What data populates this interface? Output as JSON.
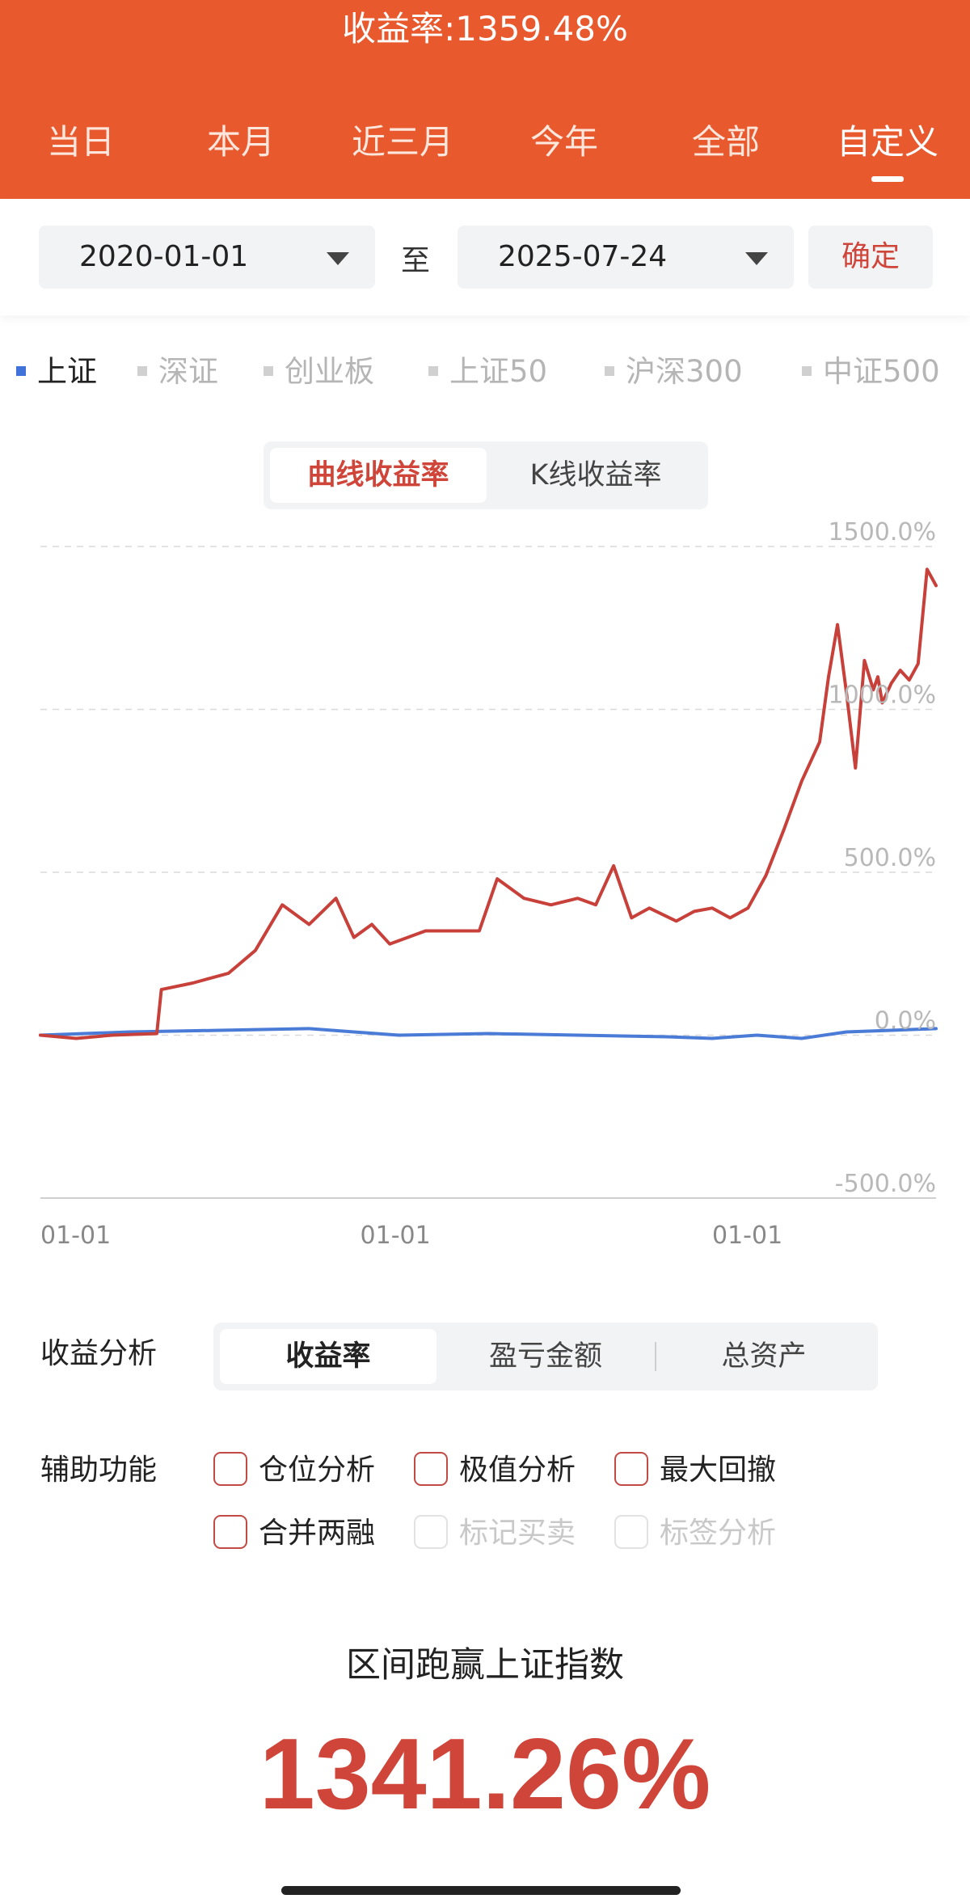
{
  "header": {
    "title": "收益率:1359.48%",
    "tabs": [
      {
        "label": "当日",
        "active": false
      },
      {
        "label": "本月",
        "active": false
      },
      {
        "label": "近三月",
        "active": false
      },
      {
        "label": "今年",
        "active": false
      },
      {
        "label": "全部",
        "active": false
      },
      {
        "label": "自定义",
        "active": true
      }
    ],
    "color": "#E8592E"
  },
  "date_range": {
    "start": "2020-01-01",
    "separator": "至",
    "end": "2025-07-24",
    "confirm_label": "确定"
  },
  "indices": [
    {
      "label": "上证",
      "active": true
    },
    {
      "label": "深证",
      "active": false
    },
    {
      "label": "创业板",
      "active": false
    },
    {
      "label": "上证50",
      "active": false
    },
    {
      "label": "沪深300",
      "active": false
    },
    {
      "label": "中证500",
      "active": false
    }
  ],
  "chart_modes": {
    "selected": "曲线收益率",
    "other": "K线收益率"
  },
  "chart_data": {
    "type": "line",
    "title": "",
    "xlabel": "",
    "ylabel": "",
    "ylim": [
      -500,
      1500
    ],
    "y_ticks": [
      "1500.0%",
      "1000.0%",
      "500.0%",
      "0.0%",
      "-500.0%"
    ],
    "x_ticks": [
      "01-01",
      "01-01",
      "01-01"
    ],
    "grid": true,
    "series": [
      {
        "color": "#C8403A",
        "x": [
          0,
          0.04,
          0.08,
          0.13,
          0.135,
          0.17,
          0.21,
          0.24,
          0.27,
          0.3,
          0.33,
          0.35,
          0.37,
          0.39,
          0.41,
          0.43,
          0.45,
          0.47,
          0.49,
          0.51,
          0.54,
          0.57,
          0.6,
          0.62,
          0.64,
          0.66,
          0.68,
          0.71,
          0.73,
          0.75,
          0.77,
          0.79,
          0.81,
          0.83,
          0.85,
          0.87,
          0.88,
          0.89,
          0.9,
          0.91,
          0.92,
          0.93,
          0.935,
          0.94,
          0.95,
          0.96,
          0.97,
          0.98,
          0.99,
          1.0
        ],
        "values": [
          0,
          -10,
          0,
          5,
          140,
          160,
          190,
          260,
          400,
          340,
          420,
          300,
          340,
          280,
          300,
          320,
          320,
          320,
          320,
          480,
          420,
          400,
          420,
          400,
          520,
          360,
          390,
          350,
          380,
          390,
          360,
          390,
          490,
          630,
          780,
          900,
          1100,
          1260,
          1050,
          820,
          1150,
          1060,
          1100,
          1020,
          1080,
          1120,
          1090,
          1140,
          1430,
          1380
        ]
      },
      {
        "color": "#4A7BD6",
        "x": [
          0,
          0.1,
          0.2,
          0.3,
          0.35,
          0.4,
          0.5,
          0.6,
          0.7,
          0.75,
          0.8,
          0.85,
          0.9,
          0.95,
          1.0
        ],
        "values": [
          0,
          10,
          15,
          20,
          10,
          0,
          5,
          0,
          -5,
          -10,
          0,
          -10,
          10,
          15,
          20
        ]
      }
    ]
  },
  "analysis": {
    "label": "收益分析",
    "options": [
      "收益率",
      "盈亏金额",
      "总资产"
    ],
    "selected": "收益率"
  },
  "aux": {
    "label": "辅助功能",
    "options": [
      {
        "label": "仓位分析",
        "enabled": true,
        "checked": false
      },
      {
        "label": "极值分析",
        "enabled": true,
        "checked": false
      },
      {
        "label": "最大回撤",
        "enabled": true,
        "checked": false
      },
      {
        "label": "合并两融",
        "enabled": true,
        "checked": false
      },
      {
        "label": "标记买卖",
        "enabled": false,
        "checked": false
      },
      {
        "label": "标签分析",
        "enabled": false,
        "checked": false
      }
    ]
  },
  "summary": {
    "label": "区间跑赢上证指数",
    "value": "1341.26%",
    "color": "#D0453A"
  }
}
